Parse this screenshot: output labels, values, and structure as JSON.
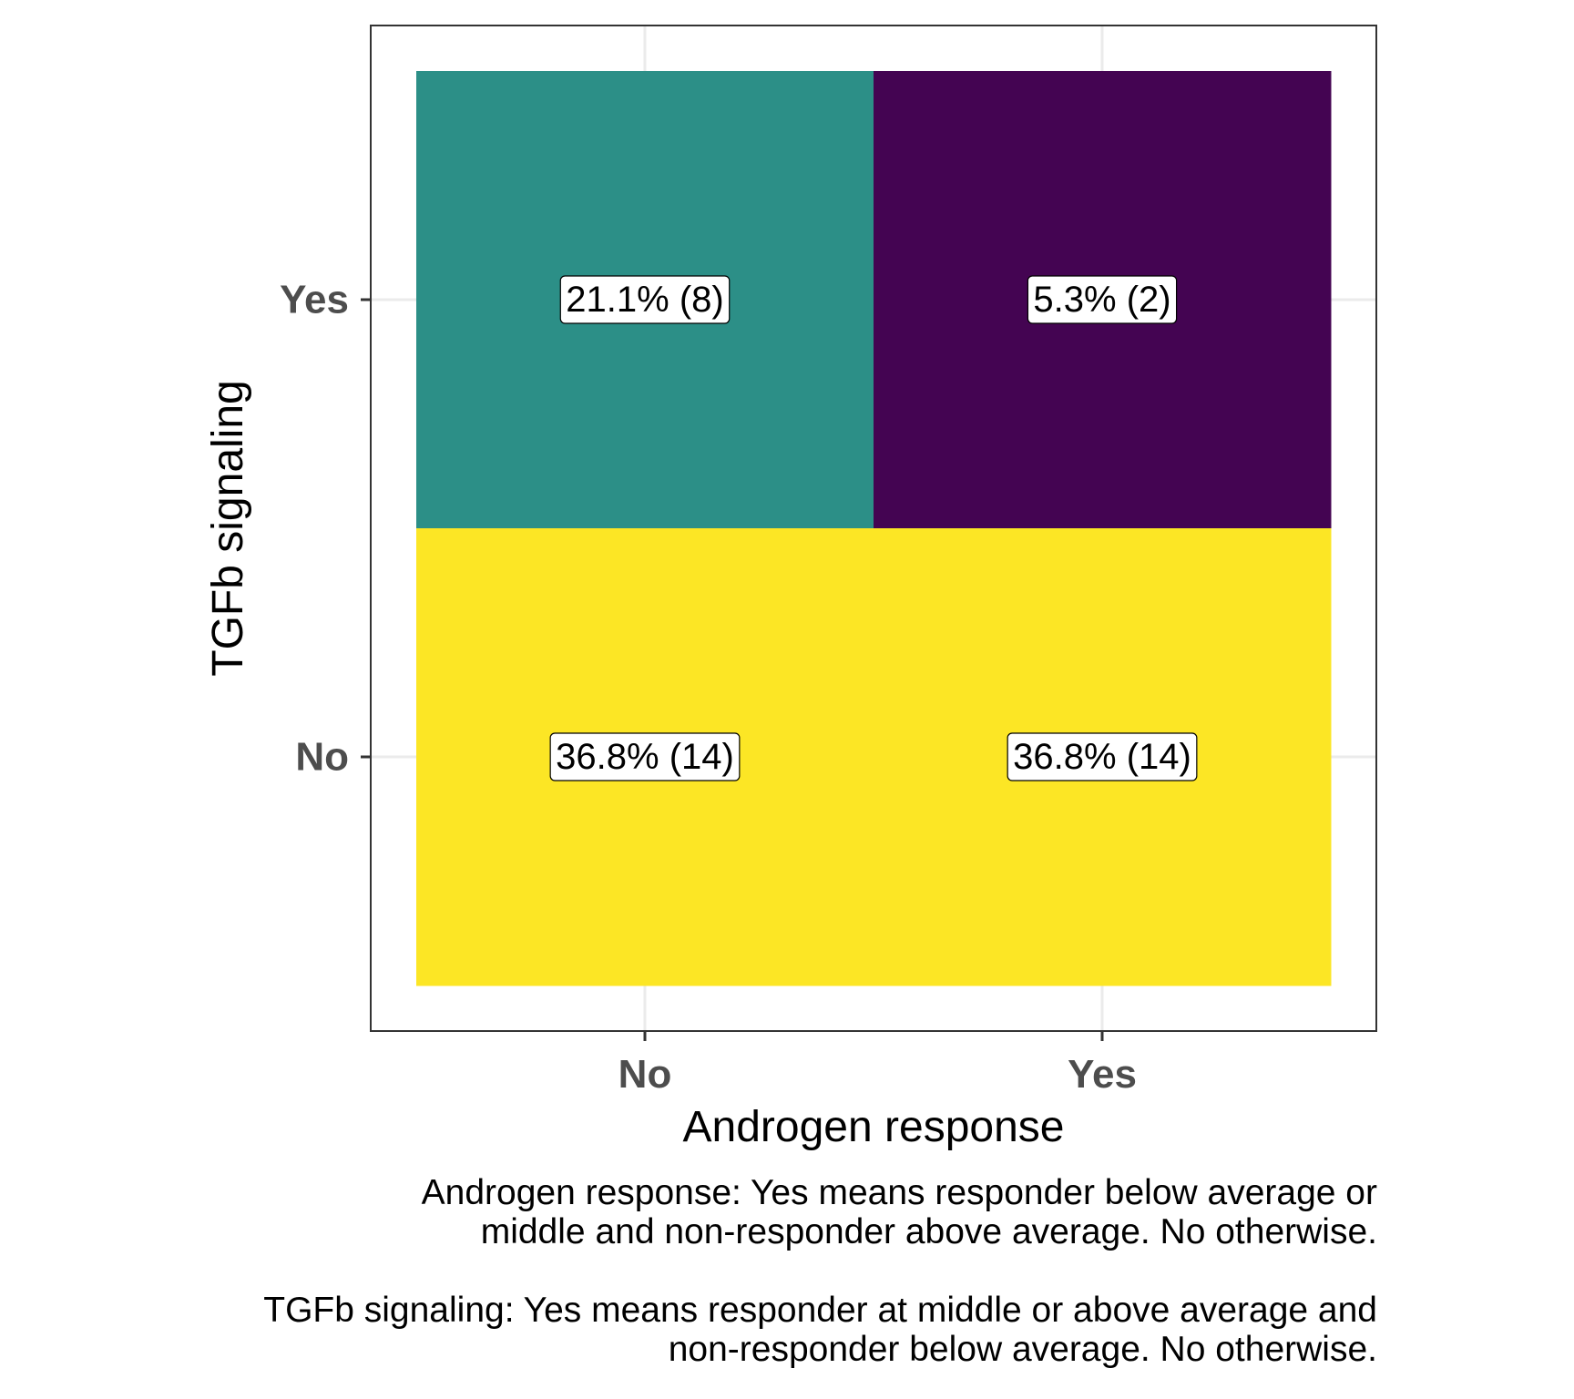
{
  "chart_data": {
    "type": "heatmap",
    "x_label": "Androgen response",
    "y_label": "TGFb signaling",
    "x_categories": [
      "No",
      "Yes"
    ],
    "y_categories": [
      "No",
      "Yes"
    ],
    "cells": [
      {
        "x": "No",
        "y": "Yes",
        "percent": 21.1,
        "count": 8,
        "label": "21.1% (8)",
        "fill": "#2C8F87"
      },
      {
        "x": "Yes",
        "y": "Yes",
        "percent": 5.3,
        "count": 2,
        "label": "5.3% (2)",
        "fill": "#440452"
      },
      {
        "x": "No",
        "y": "No",
        "percent": 36.8,
        "count": 14,
        "label": "36.8% (14)",
        "fill": "#FCE625"
      },
      {
        "x": "Yes",
        "y": "No",
        "percent": 36.8,
        "count": 14,
        "label": "36.8% (14)",
        "fill": "#FCE625"
      }
    ],
    "grid": true,
    "legend": "none"
  },
  "caption": {
    "androgen_line1": "Androgen response: Yes means responder below average or",
    "androgen_line2": "middle and non-responder above average. No otherwise.",
    "tgfb_line1": "TGFb signaling: Yes means responder at middle or above average and",
    "tgfb_line2": "non-responder below average. No otherwise."
  },
  "colors": {
    "panel_border": "#333333",
    "grid": "#EBEBEB",
    "tick_text": "#4D4D4D",
    "axis_title": "#000000"
  }
}
